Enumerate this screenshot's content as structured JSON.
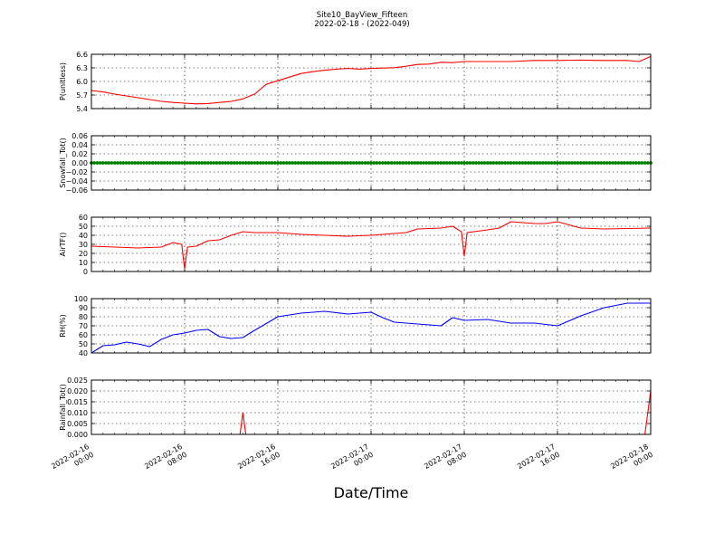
{
  "figure": {
    "title": "Site10_BayView_Fifteen",
    "subtitle": "2022-02-18 - (2022-049)",
    "xlabel": "Date/Time"
  },
  "chart_data": [
    {
      "type": "line",
      "ylabel": "P(unitless)",
      "ylim": [
        5.2,
        6.7
      ],
      "yticks": [
        "5.4",
        "5.7",
        "6.0",
        "6.3",
        "6.6"
      ],
      "xlim": [
        "2022-02-16 00:00",
        "2022-02-18 00:00"
      ],
      "xticks": [
        "2022-02-16 00:00",
        "2022-02-16 08:00",
        "2022-02-16 16:00",
        "2022-02-17 00:00",
        "2022-02-17 08:00",
        "2022-02-17 16:00",
        "2022-02-18 00:00"
      ],
      "grid": true,
      "series": [
        {
          "color": "#ff0000",
          "x": [
            "2022-02-16 00:00",
            "2022-02-16 01:00",
            "2022-02-16 02:00",
            "2022-02-16 03:00",
            "2022-02-16 04:00",
            "2022-02-16 05:00",
            "2022-02-16 06:00",
            "2022-02-16 07:00",
            "2022-02-16 08:00",
            "2022-02-16 09:00",
            "2022-02-16 10:00",
            "2022-02-16 11:00",
            "2022-02-16 12:00",
            "2022-02-16 13:00",
            "2022-02-16 14:00",
            "2022-02-16 15:00",
            "2022-02-16 16:00",
            "2022-02-16 17:00",
            "2022-02-16 18:00",
            "2022-02-16 19:00",
            "2022-02-16 20:00",
            "2022-02-16 21:00",
            "2022-02-16 22:00",
            "2022-02-16 23:00",
            "2022-02-17 00:00",
            "2022-02-17 01:00",
            "2022-02-17 02:00",
            "2022-02-17 03:00",
            "2022-02-17 04:00",
            "2022-02-17 05:00",
            "2022-02-17 06:00",
            "2022-02-17 07:00",
            "2022-02-17 08:00",
            "2022-02-17 10:00",
            "2022-02-17 12:00",
            "2022-02-17 14:00",
            "2022-02-17 16:00",
            "2022-02-17 18:00",
            "2022-02-17 20:00",
            "2022-02-17 22:00",
            "2022-02-17 23:00",
            "2022-02-18 00:00"
          ],
          "y": [
            5.7,
            5.66,
            5.6,
            5.55,
            5.5,
            5.45,
            5.4,
            5.37,
            5.35,
            5.33,
            5.34,
            5.37,
            5.4,
            5.47,
            5.6,
            5.87,
            5.97,
            6.07,
            6.17,
            6.22,
            6.26,
            6.29,
            6.31,
            6.29,
            6.31,
            6.32,
            6.33,
            6.37,
            6.42,
            6.43,
            6.48,
            6.47,
            6.5,
            6.5,
            6.5,
            6.53,
            6.53,
            6.54,
            6.53,
            6.53,
            6.5,
            6.64
          ]
        }
      ]
    },
    {
      "type": "scatter",
      "ylabel": "Snowfall_Tot()",
      "ylim": [
        -0.06,
        0.06
      ],
      "yticks": [
        "−0.06",
        "−0.04",
        "−0.02",
        "0.00",
        "0.02",
        "0.04",
        "0.06"
      ],
      "xlim": [
        "2022-02-16 00:00",
        "2022-02-18 00:00"
      ],
      "grid": true,
      "series": [
        {
          "color": "#008000",
          "x_from": "2022-02-16 00:00",
          "x_to": "2022-02-18 00:00",
          "y_constant": 0.0
        }
      ]
    },
    {
      "type": "line",
      "ylabel": "AirTF()",
      "ylim": [
        0,
        60
      ],
      "yticks": [
        "0",
        "10",
        "20",
        "30",
        "40",
        "50",
        "60"
      ],
      "xlim": [
        "2022-02-16 00:00",
        "2022-02-18 00:00"
      ],
      "grid": true,
      "series": [
        {
          "color": "#ff0000",
          "x": [
            "2022-02-16 00:00",
            "2022-02-16 02:00",
            "2022-02-16 04:00",
            "2022-02-16 06:00",
            "2022-02-16 07:00",
            "2022-02-16 07:45",
            "2022-02-16 08:00",
            "2022-02-16 08:15",
            "2022-02-16 09:00",
            "2022-02-16 10:00",
            "2022-02-16 11:00",
            "2022-02-16 12:00",
            "2022-02-16 13:00",
            "2022-02-16 14:00",
            "2022-02-16 15:00",
            "2022-02-16 16:00",
            "2022-02-16 18:00",
            "2022-02-16 20:00",
            "2022-02-16 22:00",
            "2022-02-17 00:00",
            "2022-02-17 02:00",
            "2022-02-17 03:00",
            "2022-02-17 04:00",
            "2022-02-17 06:00",
            "2022-02-17 07:00",
            "2022-02-17 07:45",
            "2022-02-17 08:00",
            "2022-02-17 08:15",
            "2022-02-17 10:00",
            "2022-02-17 11:00",
            "2022-02-17 12:00",
            "2022-02-17 14:00",
            "2022-02-17 15:00",
            "2022-02-17 16:00",
            "2022-02-17 18:00",
            "2022-02-17 20:00",
            "2022-02-18 00:00"
          ],
          "y": [
            28,
            27,
            26,
            27,
            32,
            30,
            3,
            27,
            28,
            34,
            35,
            40,
            44,
            43,
            43,
            43,
            41,
            40,
            39,
            40,
            42,
            43,
            47,
            48,
            50,
            44,
            17,
            43,
            46,
            48,
            55,
            53,
            53,
            55,
            48,
            47,
            48
          ]
        }
      ]
    },
    {
      "type": "line",
      "ylabel": "RH(%)",
      "ylim": [
        40,
        100
      ],
      "yticks": [
        "40",
        "50",
        "60",
        "70",
        "80",
        "90",
        "100"
      ],
      "xlim": [
        "2022-02-16 00:00",
        "2022-02-18 00:00"
      ],
      "grid": true,
      "series": [
        {
          "color": "#0000ff",
          "x": [
            "2022-02-16 00:00",
            "2022-02-16 01:00",
            "2022-02-16 02:00",
            "2022-02-16 03:00",
            "2022-02-16 04:00",
            "2022-02-16 05:00",
            "2022-02-16 06:00",
            "2022-02-16 07:00",
            "2022-02-16 08:00",
            "2022-02-16 09:00",
            "2022-02-16 10:00",
            "2022-02-16 11:00",
            "2022-02-16 12:00",
            "2022-02-16 13:00",
            "2022-02-16 14:00",
            "2022-02-16 16:00",
            "2022-02-16 18:00",
            "2022-02-16 20:00",
            "2022-02-16 22:00",
            "2022-02-17 00:00",
            "2022-02-17 01:00",
            "2022-02-17 02:00",
            "2022-02-17 04:00",
            "2022-02-17 06:00",
            "2022-02-17 07:00",
            "2022-02-17 08:00",
            "2022-02-17 10:00",
            "2022-02-17 12:00",
            "2022-02-17 14:00",
            "2022-02-17 16:00",
            "2022-02-17 18:00",
            "2022-02-17 20:00",
            "2022-02-17 22:00",
            "2022-02-18 00:00"
          ],
          "y": [
            40,
            48,
            49,
            52,
            50,
            47,
            55,
            60,
            62,
            65,
            66,
            58,
            56,
            57,
            65,
            80,
            84,
            86,
            83,
            85,
            79,
            74,
            72,
            70,
            79,
            76,
            77,
            73,
            73,
            70,
            81,
            90,
            95,
            95
          ]
        }
      ]
    },
    {
      "type": "line",
      "ylabel": "Rainfall_Tot()",
      "ylim": [
        0,
        0.025
      ],
      "yticks": [
        "0.000",
        "0.005",
        "0.010",
        "0.015",
        "0.020",
        "0.025"
      ],
      "xlim": [
        "2022-02-16 00:00",
        "2022-02-18 00:00"
      ],
      "grid": true,
      "series": [
        {
          "color": "#ff0000",
          "x": [
            "2022-02-16 00:00",
            "2022-02-16 12:45",
            "2022-02-16 13:00",
            "2022-02-16 13:15",
            "2022-02-17 23:30",
            "2022-02-17 23:45",
            "2022-02-18 00:00"
          ],
          "y": [
            0,
            0,
            0.01,
            0,
            0,
            0.01,
            0.02
          ]
        }
      ]
    }
  ]
}
